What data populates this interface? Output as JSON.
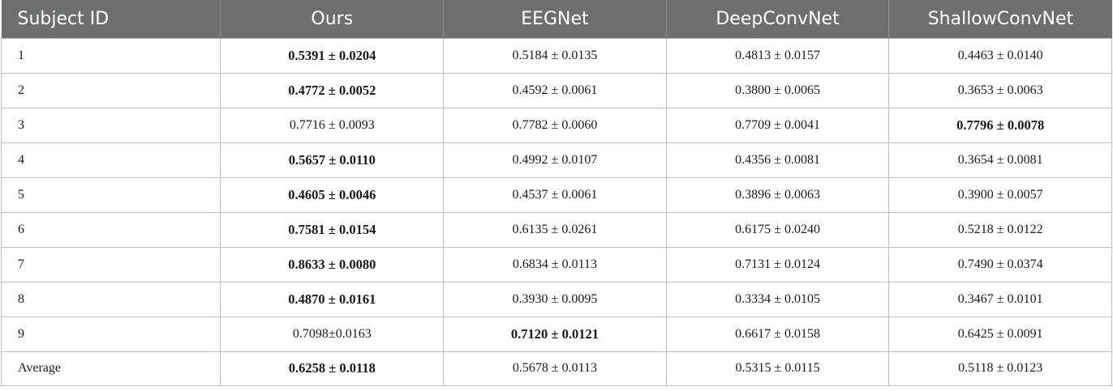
{
  "table": {
    "headers": [
      "Subject ID",
      "Ours",
      "EEGNet",
      "DeepConvNet",
      "ShallowConvNet"
    ],
    "rows": [
      {
        "id": "1",
        "cells": [
          {
            "text": "0.5391 ± 0.0204",
            "bold": true
          },
          {
            "text": "0.5184 ± 0.0135",
            "bold": false
          },
          {
            "text": "0.4813 ± 0.0157",
            "bold": false
          },
          {
            "text": "0.4463 ± 0.0140",
            "bold": false
          }
        ]
      },
      {
        "id": "2",
        "cells": [
          {
            "text": "0.4772 ± 0.0052",
            "bold": true
          },
          {
            "text": "0.4592 ± 0.0061",
            "bold": false
          },
          {
            "text": "0.3800 ± 0.0065",
            "bold": false
          },
          {
            "text": "0.3653 ± 0.0063",
            "bold": false
          }
        ]
      },
      {
        "id": "3",
        "cells": [
          {
            "text": "0.7716 ± 0.0093",
            "bold": false
          },
          {
            "text": "0.7782 ± 0.0060",
            "bold": false
          },
          {
            "text": "0.7709 ± 0.0041",
            "bold": false
          },
          {
            "text": "0.7796 ± 0.0078",
            "bold": true
          }
        ]
      },
      {
        "id": "4",
        "cells": [
          {
            "text": "0.5657 ± 0.0110",
            "bold": true
          },
          {
            "text": "0.4992 ± 0.0107",
            "bold": false
          },
          {
            "text": "0.4356 ± 0.0081",
            "bold": false
          },
          {
            "text": "0.3654 ± 0.0081",
            "bold": false
          }
        ]
      },
      {
        "id": "5",
        "cells": [
          {
            "text": "0.4605 ± 0.0046",
            "bold": true
          },
          {
            "text": "0.4537 ± 0.0061",
            "bold": false
          },
          {
            "text": "0.3896 ± 0.0063",
            "bold": false
          },
          {
            "text": "0.3900 ± 0.0057",
            "bold": false
          }
        ]
      },
      {
        "id": "6",
        "cells": [
          {
            "text": "0.7581 ± 0.0154",
            "bold": true
          },
          {
            "text": "0.6135 ± 0.0261",
            "bold": false
          },
          {
            "text": "0.6175 ± 0.0240",
            "bold": false
          },
          {
            "text": "0.5218 ± 0.0122",
            "bold": false
          }
        ]
      },
      {
        "id": "7",
        "cells": [
          {
            "text": "0.8633 ± 0.0080",
            "bold": true
          },
          {
            "text": "0.6834 ± 0.0113",
            "bold": false
          },
          {
            "text": "0.7131 ± 0.0124",
            "bold": false
          },
          {
            "text": "0.7490 ± 0.0374",
            "bold": false
          }
        ]
      },
      {
        "id": "8",
        "cells": [
          {
            "text": "0.4870 ± 0.0161",
            "bold": true
          },
          {
            "text": "0.3930 ± 0.0095",
            "bold": false
          },
          {
            "text": "0.3334 ± 0.0105",
            "bold": false
          },
          {
            "text": "0.3467 ± 0.0101",
            "bold": false
          }
        ]
      },
      {
        "id": "9",
        "cells": [
          {
            "text": "0.7098±0.0163",
            "bold": false
          },
          {
            "text": "0.7120 ± 0.0121",
            "bold": true
          },
          {
            "text": "0.6617 ± 0.0158",
            "bold": false
          },
          {
            "text": "0.6425 ± 0.0091",
            "bold": false
          }
        ]
      },
      {
        "id": "Average",
        "cells": [
          {
            "text": "0.6258 ± 0.0118",
            "bold": true
          },
          {
            "text": "0.5678 ± 0.0113",
            "bold": false
          },
          {
            "text": "0.5315 ± 0.0115",
            "bold": false
          },
          {
            "text": "0.5118 ± 0.0123",
            "bold": false
          }
        ]
      }
    ]
  },
  "colors": {
    "header_bg": "#6d6e71",
    "header_text": "#ffffff",
    "grid": "#bdbec0"
  }
}
